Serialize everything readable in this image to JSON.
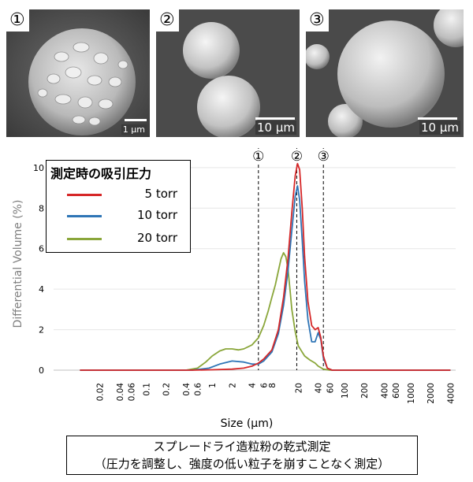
{
  "photos": [
    {
      "number": "①",
      "scale_label": "1 μm"
    },
    {
      "number": "②",
      "scale_label": "10 μm"
    },
    {
      "number": "③",
      "scale_label": "10 μm"
    }
  ],
  "legend": {
    "title": "測定時の吸引圧力",
    "items": [
      {
        "label": "5 torr",
        "color": "#d62728"
      },
      {
        "label": "10 torr",
        "color": "#2e75b6"
      },
      {
        "label": "20 torr",
        "color": "#8aa63a"
      }
    ]
  },
  "caption": {
    "line1": "スプレードライ造粒粉の乾式測定",
    "line2": "（圧力を調整し、強度の低い粒子を崩すことなく測定）"
  },
  "chart_data": {
    "type": "line",
    "xlabel": "Size (μm)",
    "ylabel": "Differential Volume (%)",
    "x_scale": "log",
    "xlim": [
      0.004,
      4800
    ],
    "ylim": [
      0,
      10.5
    ],
    "x_ticks": [
      "0.02",
      "0.04",
      "0.06",
      "0.1",
      "0.2",
      "0.4",
      "0.6",
      "1",
      "2",
      "4",
      "6",
      "8",
      "20",
      "40",
      "60",
      "100",
      "200",
      "400",
      "600",
      "1000",
      "2000",
      "4000"
    ],
    "y_ticks": [
      "0",
      "2",
      "4",
      "6",
      "8",
      "10"
    ],
    "markers": [
      {
        "label": "①",
        "x": 5
      },
      {
        "label": "②",
        "x": 19
      },
      {
        "label": "③",
        "x": 48
      }
    ],
    "series": [
      {
        "name": "5 torr",
        "color": "#d62728",
        "points": [
          [
            0.01,
            0
          ],
          [
            0.5,
            0
          ],
          [
            1,
            0.02
          ],
          [
            2,
            0.05
          ],
          [
            3,
            0.1
          ],
          [
            4,
            0.2
          ],
          [
            5,
            0.35
          ],
          [
            6,
            0.55
          ],
          [
            8,
            1.0
          ],
          [
            10,
            2.0
          ],
          [
            12,
            3.6
          ],
          [
            14,
            5.5
          ],
          [
            16,
            7.8
          ],
          [
            18,
            9.6
          ],
          [
            19.5,
            10.2
          ],
          [
            21,
            9.9
          ],
          [
            23,
            8.0
          ],
          [
            25,
            5.6
          ],
          [
            28,
            3.4
          ],
          [
            32,
            2.2
          ],
          [
            36,
            2.0
          ],
          [
            40,
            2.1
          ],
          [
            44,
            1.6
          ],
          [
            48,
            0.7
          ],
          [
            55,
            0.1
          ],
          [
            65,
            0
          ],
          [
            4000,
            0
          ]
        ]
      },
      {
        "name": "10 torr",
        "color": "#2e75b6",
        "points": [
          [
            0.01,
            0
          ],
          [
            0.5,
            0
          ],
          [
            0.9,
            0.1
          ],
          [
            1.3,
            0.3
          ],
          [
            2,
            0.45
          ],
          [
            3,
            0.4
          ],
          [
            4,
            0.3
          ],
          [
            5,
            0.3
          ],
          [
            6,
            0.45
          ],
          [
            8,
            0.9
          ],
          [
            10,
            1.8
          ],
          [
            12,
            3.2
          ],
          [
            14,
            4.9
          ],
          [
            16,
            6.9
          ],
          [
            18,
            8.6
          ],
          [
            19.5,
            9.1
          ],
          [
            21,
            8.4
          ],
          [
            23,
            6.4
          ],
          [
            25,
            4.4
          ],
          [
            28,
            2.5
          ],
          [
            32,
            1.4
          ],
          [
            36,
            1.4
          ],
          [
            40,
            1.85
          ],
          [
            44,
            1.5
          ],
          [
            48,
            0.6
          ],
          [
            55,
            0.1
          ],
          [
            65,
            0
          ],
          [
            4000,
            0
          ]
        ]
      },
      {
        "name": "20 torr",
        "color": "#8aa63a",
        "points": [
          [
            0.01,
            0
          ],
          [
            0.4,
            0
          ],
          [
            0.6,
            0.1
          ],
          [
            0.8,
            0.4
          ],
          [
            1,
            0.7
          ],
          [
            1.3,
            0.95
          ],
          [
            1.6,
            1.05
          ],
          [
            2,
            1.05
          ],
          [
            2.5,
            1.0
          ],
          [
            3,
            1.05
          ],
          [
            4,
            1.25
          ],
          [
            5,
            1.6
          ],
          [
            6,
            2.2
          ],
          [
            7,
            2.9
          ],
          [
            8,
            3.6
          ],
          [
            9,
            4.2
          ],
          [
            10,
            4.9
          ],
          [
            11,
            5.5
          ],
          [
            12,
            5.8
          ],
          [
            13,
            5.6
          ],
          [
            14,
            5.0
          ],
          [
            15,
            4.0
          ],
          [
            16,
            3.0
          ],
          [
            18,
            1.9
          ],
          [
            20,
            1.2
          ],
          [
            25,
            0.7
          ],
          [
            30,
            0.5
          ],
          [
            36,
            0.35
          ],
          [
            40,
            0.2
          ],
          [
            48,
            0.05
          ],
          [
            60,
            0
          ],
          [
            4000,
            0
          ]
        ]
      }
    ]
  }
}
